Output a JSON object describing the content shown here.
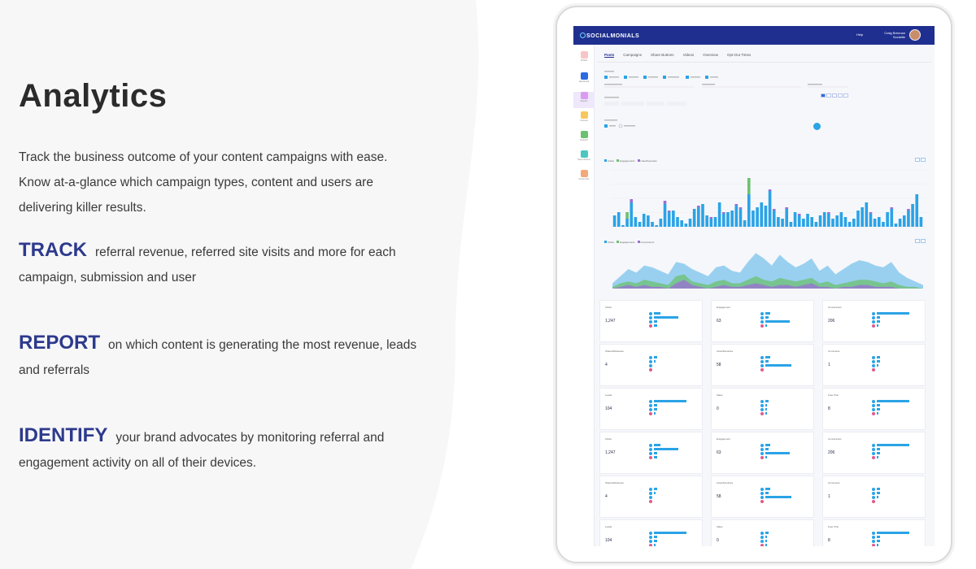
{
  "hero": {
    "title": "Analytics",
    "intro": "Track the business outcome of your content campaigns with ease. Know at-a-glance which campaign types, content and users are delivering killer results."
  },
  "features": [
    {
      "keyword": "TRACK",
      "text": "referral revenue, referred site visits and more for each campaign, submission and user"
    },
    {
      "keyword": "REPORT",
      "text": "on which content is generating the most revenue, leads and referrals"
    },
    {
      "keyword": "IDENTIFY",
      "text": "your brand advocates by monitoring referral and engagement activity on all of their devices."
    }
  ],
  "app": {
    "logo": "SOCIALMONIALS",
    "help": "Help",
    "user_name": "Craig Brennan",
    "user_role": "Socialite",
    "tabs": [
      "Posts",
      "Campaigns",
      "Share Buttons",
      "Videos",
      "Overview",
      "Opt-Out Times"
    ],
    "nav": [
      "Publish",
      "Dashboard",
      "Reports",
      "Contests",
      "Analytics",
      "Share Buttons",
      "Social Jobs"
    ],
    "colors": {
      "nav_bar": "#1f2f8f",
      "accent": "#2ba3e6",
      "green": "#6cc070",
      "purple": "#9b6fd6",
      "pink": "#e05a8a"
    }
  },
  "chart_data": [
    {
      "type": "bar",
      "series": [
        {
          "name": "Clicks",
          "values": [
            14,
            18,
            2,
            10,
            30,
            12,
            6,
            16,
            14,
            6,
            2,
            10,
            28,
            18,
            20,
            12,
            8,
            4,
            10,
            22,
            24,
            28,
            14,
            10,
            12,
            30,
            16,
            18,
            20,
            26,
            22,
            8,
            40,
            20,
            24,
            30,
            26,
            44,
            20,
            12,
            10,
            22,
            6,
            18,
            14,
            10,
            16,
            12,
            6,
            14,
            18,
            16,
            10,
            14,
            18,
            12,
            6,
            10,
            20,
            24,
            30,
            16,
            10,
            12,
            6,
            18,
            22,
            4,
            10,
            14,
            20,
            28,
            40,
            12
          ]
        },
        {
          "name": "Engagements",
          "values": [
            0,
            0,
            0,
            8,
            0,
            0,
            0,
            0,
            0,
            0,
            0,
            0,
            0,
            0,
            0,
            0,
            0,
            0,
            0,
            0,
            0,
            0,
            0,
            0,
            0,
            0,
            0,
            0,
            0,
            0,
            0,
            0,
            20,
            0,
            0,
            0,
            0,
            0,
            0,
            0,
            0,
            0,
            0,
            0,
            0,
            0,
            0,
            0,
            0,
            0,
            0,
            0,
            0,
            0,
            0,
            0,
            0,
            0,
            0,
            0,
            0,
            0,
            0,
            0,
            0,
            0,
            0,
            0,
            0,
            0,
            0,
            0,
            0,
            0
          ]
        },
        {
          "name": "Likes/Favorites",
          "values": [
            0,
            0,
            0,
            0,
            4,
            0,
            0,
            0,
            0,
            0,
            0,
            0,
            4,
            2,
            0,
            0,
            0,
            0,
            0,
            0,
            2,
            0,
            0,
            2,
            0,
            0,
            2,
            0,
            0,
            2,
            2,
            0,
            0,
            0,
            0,
            0,
            0,
            2,
            2,
            0,
            0,
            2,
            0,
            0,
            2,
            0,
            0,
            0,
            0,
            0,
            0,
            2,
            0,
            0,
            0,
            0,
            0,
            0,
            0,
            0,
            0,
            2,
            0,
            0,
            0,
            0,
            2,
            0,
            0,
            0,
            2,
            0,
            0,
            0
          ]
        }
      ]
    },
    {
      "type": "area",
      "series": [
        {
          "name": "Clicks",
          "values": [
            6,
            14,
            22,
            18,
            26,
            24,
            20,
            16,
            30,
            28,
            22,
            18,
            14,
            24,
            26,
            20,
            18,
            30,
            40,
            34,
            26,
            38,
            30,
            24,
            28,
            34,
            20,
            26,
            16,
            22,
            28,
            32,
            30,
            26,
            24,
            30,
            18,
            12,
            8,
            4
          ]
        },
        {
          "name": "Conversions",
          "values": [
            2,
            6,
            8,
            6,
            10,
            8,
            6,
            4,
            14,
            16,
            8,
            6,
            4,
            8,
            10,
            6,
            6,
            10,
            14,
            10,
            8,
            12,
            10,
            8,
            10,
            12,
            6,
            8,
            4,
            6,
            8,
            10,
            10,
            8,
            6,
            8,
            4,
            2,
            2,
            0
          ]
        },
        {
          "name": "Engagements",
          "values": [
            0,
            2,
            4,
            2,
            4,
            2,
            2,
            0,
            6,
            10,
            4,
            2,
            0,
            2,
            4,
            2,
            2,
            4,
            6,
            4,
            2,
            4,
            4,
            2,
            4,
            6,
            2,
            2,
            0,
            2,
            2,
            4,
            4,
            2,
            2,
            2,
            0,
            0,
            0,
            0
          ]
        }
      ]
    }
  ],
  "cards": [
    {
      "title": "Clicks",
      "value": "1,247"
    },
    {
      "title": "Engagement",
      "value": "63"
    },
    {
      "title": "Conversions",
      "value": "206"
    },
    {
      "title": "Shares/Retweets",
      "value": "4"
    },
    {
      "title": "Likes/Favorites",
      "value": "58"
    },
    {
      "title": "Comments",
      "value": "1"
    },
    {
      "title": "Leads",
      "value": "104"
    },
    {
      "title": "Sales",
      "value": "0"
    },
    {
      "title": "Free Trial",
      "value": "8"
    },
    {
      "title": "Clicks",
      "value": "1,247"
    },
    {
      "title": "Engagement",
      "value": "63"
    },
    {
      "title": "Conversions",
      "value": "206"
    },
    {
      "title": "Shares/Retweets",
      "value": "4"
    },
    {
      "title": "Likes/Favorites",
      "value": "58"
    },
    {
      "title": "Comments",
      "value": "1"
    },
    {
      "title": "Leads",
      "value": "104"
    },
    {
      "title": "Sales",
      "value": "0"
    },
    {
      "title": "Free Trial",
      "value": "8"
    }
  ]
}
